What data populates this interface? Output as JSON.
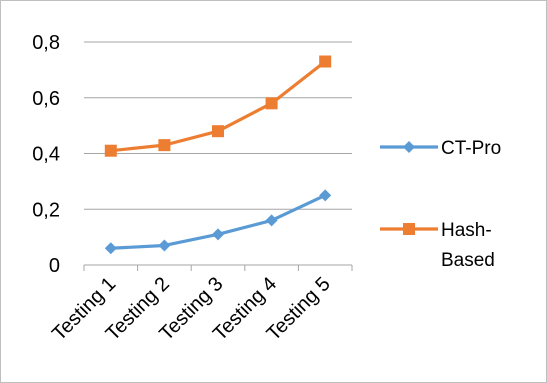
{
  "chart_data": {
    "type": "line",
    "categories": [
      "Testing 1",
      "Testing 2",
      "Testing 3",
      "Testing 4",
      "Testing 5"
    ],
    "series": [
      {
        "name": "CT-Pro",
        "values": [
          0.06,
          0.07,
          0.11,
          0.16,
          0.25
        ],
        "color": "#5B9BD5",
        "marker": "diamond"
      },
      {
        "name": "Hash-Based",
        "values": [
          0.41,
          0.43,
          0.48,
          0.58,
          0.73
        ],
        "color": "#ED7D31",
        "marker": "square"
      }
    ],
    "y_ticks": [
      "0",
      "0,2",
      "0,4",
      "0,6",
      "0,8"
    ],
    "ylim": [
      0,
      0.8
    ],
    "grid": "horizontal",
    "legend": "right"
  }
}
